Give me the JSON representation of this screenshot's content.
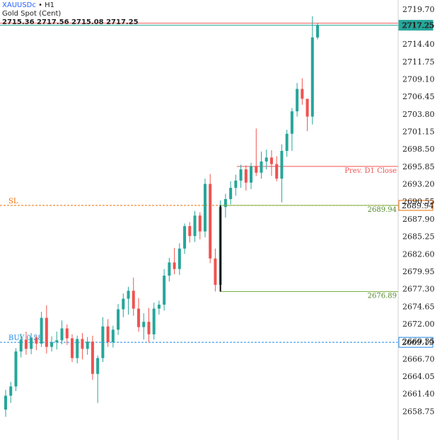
{
  "header": {
    "symbol": "XAUUSDc",
    "separator": " • ",
    "timeframe": "H1",
    "name": "Gold Spot (Cent)",
    "ohlc": "2715.36 2717.56 2715.08 2717.25"
  },
  "chart_data": {
    "type": "candlestick",
    "ylim": [
      2657.5,
      2720.0
    ],
    "yticks": [
      "2719.70",
      "2717.25",
      "2714.40",
      "2711.75",
      "2709.10",
      "2706.45",
      "2703.80",
      "2701.15",
      "2698.50",
      "2695.85",
      "2693.20",
      "2690.55",
      "2687.90",
      "2685.25",
      "2682.60",
      "2679.95",
      "2677.30",
      "2674.65",
      "2672.00",
      "2669.35",
      "2666.70",
      "2664.05",
      "2661.40",
      "2658.75"
    ],
    "grid": false,
    "colors": {
      "up": "#26a69a",
      "down": "#ef5350"
    },
    "candles": [
      [
        2659.0,
        2662.0,
        2657.9,
        2661.1
      ],
      [
        2661.1,
        2663.2,
        2660.0,
        2662.5
      ],
      [
        2662.5,
        2668.3,
        2661.8,
        2667.8
      ],
      [
        2667.8,
        2670.5,
        2666.9,
        2669.6
      ],
      [
        2669.6,
        2670.8,
        2667.3,
        2668.2
      ],
      [
        2668.2,
        2670.6,
        2667.4,
        2669.9
      ],
      [
        2669.9,
        2670.2,
        2668.0,
        2669.0
      ],
      [
        2669.0,
        2673.8,
        2668.5,
        2672.9
      ],
      [
        2672.9,
        2674.8,
        2667.5,
        2668.5
      ],
      [
        2668.5,
        2670.1,
        2667.8,
        2669.2
      ],
      [
        2669.2,
        2670.8,
        2668.1,
        2669.5
      ],
      [
        2669.5,
        2672.5,
        2668.9,
        2671.3
      ],
      [
        2671.3,
        2671.9,
        2668.8,
        2669.8
      ],
      [
        2669.8,
        2670.4,
        2666.2,
        2666.8
      ],
      [
        2666.8,
        2670.2,
        2666.0,
        2669.7
      ],
      [
        2669.7,
        2670.6,
        2666.6,
        2668.2
      ],
      [
        2668.2,
        2670.0,
        2667.3,
        2669.3
      ],
      [
        2669.3,
        2670.2,
        2663.5,
        2664.4
      ],
      [
        2664.4,
        2667.2,
        2660.0,
        2666.8
      ],
      [
        2666.8,
        2673.0,
        2666.2,
        2671.6
      ],
      [
        2671.6,
        2672.7,
        2668.5,
        2669.2
      ],
      [
        2669.2,
        2671.7,
        2668.4,
        2671.1
      ],
      [
        2671.1,
        2675.0,
        2670.3,
        2674.2
      ],
      [
        2674.2,
        2676.6,
        2673.0,
        2675.8
      ],
      [
        2675.8,
        2677.6,
        2673.4,
        2677.0
      ],
      [
        2677.0,
        2679.0,
        2673.2,
        2674.3
      ],
      [
        2674.3,
        2675.9,
        2670.8,
        2671.5
      ],
      [
        2671.5,
        2673.6,
        2669.6,
        2672.3
      ],
      [
        2672.3,
        2674.4,
        2669.2,
        2670.4
      ],
      [
        2670.4,
        2675.2,
        2669.6,
        2674.3
      ],
      [
        2674.3,
        2675.5,
        2673.4,
        2674.9
      ],
      [
        2674.9,
        2680.3,
        2674.0,
        2679.3
      ],
      [
        2679.3,
        2682.0,
        2678.4,
        2681.3
      ],
      [
        2681.3,
        2683.5,
        2679.5,
        2680.3
      ],
      [
        2680.3,
        2684.2,
        2679.4,
        2683.4
      ],
      [
        2683.4,
        2687.2,
        2682.6,
        2686.8
      ],
      [
        2686.8,
        2687.4,
        2684.3,
        2685.3
      ],
      [
        2685.3,
        2689.1,
        2684.4,
        2688.4
      ],
      [
        2688.4,
        2688.9,
        2684.8,
        2686.0
      ],
      [
        2686.0,
        2694.0,
        2685.1,
        2693.2
      ],
      [
        2693.2,
        2694.7,
        2681.2,
        2681.9
      ],
      [
        2681.9,
        2683.4,
        2676.9,
        2677.9
      ],
      [
        2677.9,
        2690.7,
        2676.9,
        2689.7
      ],
      [
        2689.7,
        2691.7,
        2688.1,
        2690.9
      ],
      [
        2690.9,
        2693.6,
        2690.1,
        2692.6
      ],
      [
        2692.6,
        2694.6,
        2691.4,
        2693.7
      ],
      [
        2693.7,
        2696.1,
        2692.6,
        2695.4
      ],
      [
        2695.4,
        2696.0,
        2692.2,
        2693.4
      ],
      [
        2693.4,
        2696.4,
        2692.4,
        2695.9
      ],
      [
        2695.9,
        2701.6,
        2694.4,
        2694.9
      ],
      [
        2694.9,
        2698.1,
        2694.0,
        2696.6
      ],
      [
        2696.6,
        2698.4,
        2695.4,
        2697.2
      ],
      [
        2697.2,
        2698.3,
        2694.4,
        2696.2
      ],
      [
        2696.2,
        2697.4,
        2693.6,
        2694.0
      ],
      [
        2694.0,
        2699.2,
        2690.4,
        2698.2
      ],
      [
        2698.2,
        2701.4,
        2697.3,
        2700.8
      ],
      [
        2700.8,
        2704.7,
        2698.2,
        2704.2
      ],
      [
        2704.2,
        2708.5,
        2703.4,
        2707.6
      ],
      [
        2707.6,
        2709.2,
        2705.2,
        2706.1
      ],
      [
        2706.1,
        2705.6,
        2701.2,
        2703.4
      ],
      [
        2703.4,
        2718.6,
        2702.2,
        2715.4
      ],
      [
        2715.4,
        2717.6,
        2715.1,
        2717.3
      ]
    ],
    "levels": [
      {
        "name": "Prev. D1 Close",
        "price": 2695.85,
        "color": "#ef5350",
        "style": "solid",
        "right_label": "Prev. D1 Close"
      },
      {
        "name": "SL",
        "price": 2689.94,
        "color": "#ef6c00",
        "style": "dashed",
        "left_label": "SL",
        "tag": "2689.94"
      },
      {
        "name": "BUY",
        "price": 2669.19,
        "color": "#1e88e5",
        "style": "dashed",
        "left_label": "BUY 0.58",
        "tag": "2669.19"
      },
      {
        "name": "current",
        "price": 2717.25,
        "color": "#26a69a",
        "style": "solid",
        "tag": "2717.25"
      },
      {
        "name": "ask",
        "price": 2717.56,
        "color": "#ef5350",
        "style": "solid"
      }
    ],
    "range_marker": {
      "start_index": 42,
      "high": 2689.94,
      "low": 2676.89,
      "high_label": "2689.94",
      "low_label": "2676.89",
      "color": "#7cb342"
    }
  }
}
